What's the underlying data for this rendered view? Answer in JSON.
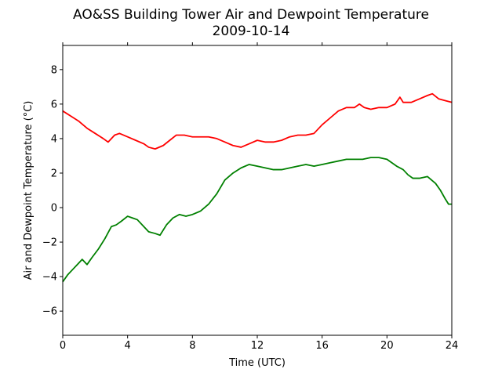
{
  "chart_data": {
    "type": "line",
    "title": "AO&SS Building Tower Air and Dewpoint Temperature",
    "subtitle": "2009-10-14",
    "xlabel": "Time (UTC)",
    "ylabel": "Air and Dewpoint Temperature (°C)",
    "xlim": [
      0,
      24
    ],
    "ylim": [
      -7.4,
      9.4
    ],
    "xticks": [
      0,
      4,
      8,
      12,
      16,
      20,
      24
    ],
    "xtick_labels": [
      "0",
      "4",
      "8",
      "12",
      "16",
      "20",
      "24"
    ],
    "yticks": [
      -6,
      -4,
      -2,
      0,
      2,
      4,
      6,
      8
    ],
    "ytick_labels": [
      "−6",
      "−4",
      "−2",
      "0",
      "2",
      "4",
      "6",
      "8"
    ],
    "grid": false,
    "legend": "none",
    "series": [
      {
        "color": "#ff0000",
        "x": [
          0,
          0.5,
          1,
          1.5,
          2,
          2.5,
          2.8,
          3.2,
          3.5,
          4,
          4.5,
          5,
          5.3,
          5.7,
          6.2,
          6.6,
          7,
          7.5,
          8,
          8.5,
          9,
          9.5,
          10,
          10.5,
          11,
          11.5,
          12,
          12.5,
          13,
          13.5,
          14,
          14.5,
          15,
          15.5,
          16,
          16.5,
          17,
          17.5,
          18,
          18.3,
          18.6,
          19,
          19.5,
          20,
          20.5,
          20.8,
          21,
          21.5,
          22,
          22.5,
          22.8,
          23.2,
          23.6,
          24
        ],
        "y": [
          5.6,
          5.3,
          5.0,
          4.6,
          4.3,
          4.0,
          3.8,
          4.2,
          4.3,
          4.1,
          3.9,
          3.7,
          3.5,
          3.4,
          3.6,
          3.9,
          4.2,
          4.2,
          4.1,
          4.1,
          4.1,
          4.0,
          3.8,
          3.6,
          3.5,
          3.7,
          3.9,
          3.8,
          3.8,
          3.9,
          4.1,
          4.2,
          4.2,
          4.3,
          4.8,
          5.2,
          5.6,
          5.8,
          5.8,
          6.0,
          5.8,
          5.7,
          5.8,
          5.8,
          6.0,
          6.4,
          6.1,
          6.1,
          6.3,
          6.5,
          6.6,
          6.3,
          6.2,
          6.1
        ]
      },
      {
        "color": "#008000",
        "x": [
          0,
          0.3,
          0.6,
          0.9,
          1.2,
          1.5,
          1.8,
          2.2,
          2.6,
          3,
          3.3,
          3.6,
          4,
          4.3,
          4.6,
          5,
          5.3,
          5.7,
          6,
          6.4,
          6.8,
          7.2,
          7.6,
          8,
          8.5,
          9,
          9.5,
          10,
          10.5,
          11,
          11.5,
          12,
          12.5,
          13,
          13.5,
          14,
          14.5,
          15,
          15.5,
          16,
          16.5,
          17,
          17.5,
          18,
          18.5,
          19,
          19.5,
          20,
          20.3,
          20.6,
          21,
          21.3,
          21.6,
          22,
          22.5,
          23,
          23.3,
          23.6,
          23.8,
          24
        ],
        "y": [
          -4.3,
          -3.9,
          -3.6,
          -3.3,
          -3.0,
          -3.3,
          -2.9,
          -2.4,
          -1.8,
          -1.1,
          -1.0,
          -0.8,
          -0.5,
          -0.6,
          -0.7,
          -1.1,
          -1.4,
          -1.5,
          -1.6,
          -1.0,
          -0.6,
          -0.4,
          -0.5,
          -0.4,
          -0.2,
          0.2,
          0.8,
          1.6,
          2.0,
          2.3,
          2.5,
          2.4,
          2.3,
          2.2,
          2.2,
          2.3,
          2.4,
          2.5,
          2.4,
          2.5,
          2.6,
          2.7,
          2.8,
          2.8,
          2.8,
          2.9,
          2.9,
          2.8,
          2.6,
          2.4,
          2.2,
          1.9,
          1.7,
          1.7,
          1.8,
          1.4,
          1.0,
          0.5,
          0.2,
          0.2
        ]
      }
    ]
  }
}
